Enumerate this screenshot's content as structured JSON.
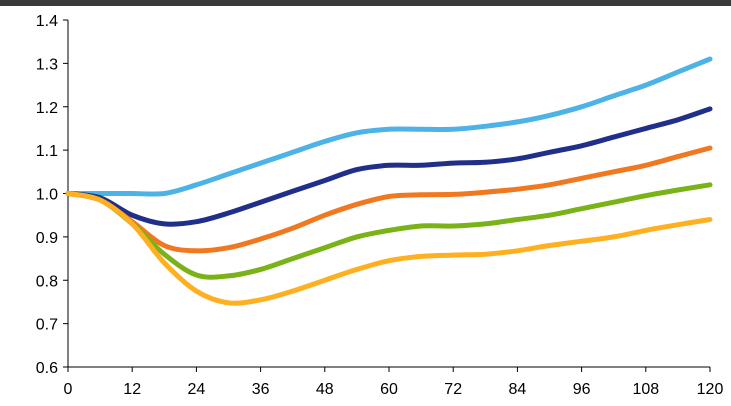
{
  "chart_data": {
    "type": "line",
    "title": "",
    "xlabel": "",
    "ylabel": "",
    "x_ticks": [
      "0",
      "12",
      "24",
      "36",
      "48",
      "60",
      "72",
      "84",
      "96",
      "108",
      "120"
    ],
    "y_ticks": [
      "0.6",
      "0.7",
      "0.8",
      "0.9",
      "1.0",
      "1.1",
      "1.2",
      "1.3",
      "1.4"
    ],
    "xlim": [
      0,
      120
    ],
    "ylim": [
      0.6,
      1.4
    ],
    "grid": false,
    "legend": "none",
    "series": [
      {
        "color": "#4db3e6",
        "x": [
          0,
          6,
          12,
          18,
          24,
          30,
          36,
          42,
          48,
          54,
          60,
          66,
          72,
          78,
          84,
          90,
          96,
          102,
          108,
          114,
          120
        ],
        "values": [
          1.0,
          1.0,
          1.0,
          1.0,
          1.02,
          1.045,
          1.07,
          1.095,
          1.12,
          1.14,
          1.148,
          1.148,
          1.148,
          1.155,
          1.165,
          1.18,
          1.2,
          1.225,
          1.25,
          1.28,
          1.31
        ]
      },
      {
        "color": "#1f2f8a",
        "x": [
          0,
          6,
          12,
          18,
          24,
          30,
          36,
          42,
          48,
          54,
          60,
          66,
          72,
          78,
          84,
          90,
          96,
          102,
          108,
          114,
          120
        ],
        "values": [
          1.0,
          0.99,
          0.95,
          0.93,
          0.935,
          0.955,
          0.98,
          1.005,
          1.03,
          1.055,
          1.065,
          1.065,
          1.07,
          1.072,
          1.08,
          1.095,
          1.11,
          1.13,
          1.15,
          1.17,
          1.195
        ]
      },
      {
        "color": "#f07820",
        "x": [
          0,
          6,
          12,
          18,
          24,
          30,
          36,
          42,
          48,
          54,
          60,
          66,
          72,
          78,
          84,
          90,
          96,
          102,
          108,
          114,
          120
        ],
        "values": [
          1.0,
          0.985,
          0.935,
          0.88,
          0.868,
          0.875,
          0.895,
          0.92,
          0.95,
          0.975,
          0.993,
          0.997,
          0.998,
          1.003,
          1.01,
          1.02,
          1.035,
          1.05,
          1.065,
          1.085,
          1.105
        ]
      },
      {
        "color": "#7ab317",
        "x": [
          0,
          6,
          12,
          18,
          24,
          30,
          36,
          42,
          48,
          54,
          60,
          66,
          72,
          78,
          84,
          90,
          96,
          102,
          108,
          114,
          120
        ],
        "values": [
          1.0,
          0.985,
          0.93,
          0.86,
          0.812,
          0.81,
          0.825,
          0.85,
          0.875,
          0.9,
          0.915,
          0.925,
          0.925,
          0.93,
          0.94,
          0.95,
          0.965,
          0.98,
          0.995,
          1.008,
          1.02
        ]
      },
      {
        "color": "#ffb020",
        "x": [
          0,
          6,
          12,
          18,
          24,
          30,
          36,
          42,
          48,
          54,
          60,
          66,
          72,
          78,
          84,
          90,
          96,
          102,
          108,
          114,
          120
        ],
        "values": [
          1.0,
          0.985,
          0.93,
          0.84,
          0.775,
          0.748,
          0.755,
          0.775,
          0.8,
          0.825,
          0.845,
          0.855,
          0.858,
          0.86,
          0.868,
          0.88,
          0.89,
          0.9,
          0.915,
          0.928,
          0.94
        ]
      }
    ]
  }
}
